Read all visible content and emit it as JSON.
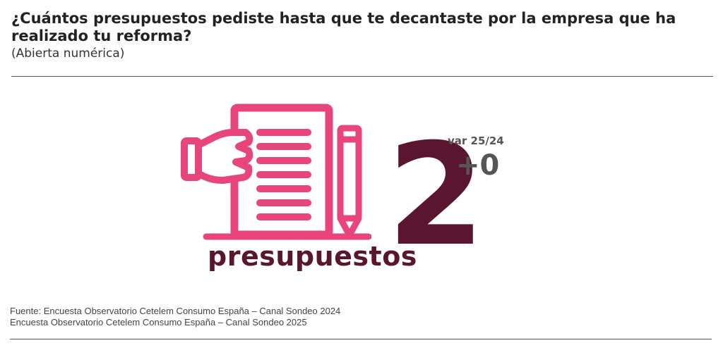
{
  "header": {
    "title": "¿Cuántos presupuestos pediste hasta que te decantaste por la empresa que ha realizado tu reforma?",
    "subtitle": "(Abierta numérica)"
  },
  "stat": {
    "value": "2",
    "unit": "presupuestos",
    "variation_label": "var 25/24",
    "variation_value": "+0"
  },
  "icon": "hand-holding-document-with-pencil-icon",
  "colors": {
    "accent": "#e8457a",
    "number": "#5a1630",
    "variation": "#555555"
  },
  "footer": {
    "source_lines": [
      "Fuente: Encuesta Observatorio Cetelem Consumo España – Canal Sondeo 2024",
      "Encuesta Observatorio Cetelem Consumo España – Canal Sondeo 2025"
    ]
  }
}
